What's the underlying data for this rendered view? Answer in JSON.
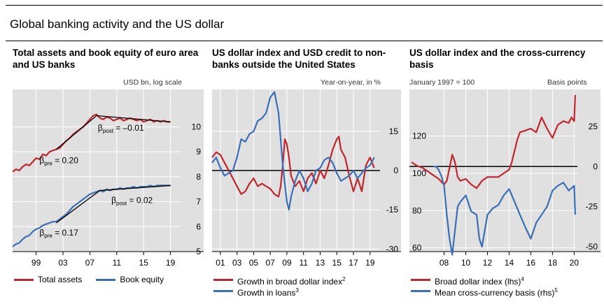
{
  "main_title": "Global banking activity and the US dollar",
  "colors": {
    "red": "#c0262d",
    "blue": "#3b6fb5",
    "grid": "#ffffff",
    "panel": "#e0e0e0"
  },
  "chart_data": [
    {
      "type": "line",
      "title": "Total assets and book equity of euro area and US banks",
      "unit_label": "USD bn, log scale",
      "y_axis_side": "right",
      "ylim": [
        5,
        11.5
      ],
      "yticks": [
        5,
        6,
        7,
        8,
        9,
        10
      ],
      "xlim": [
        1995.5,
        2020.5
      ],
      "xticks": [
        1999,
        2003,
        2007,
        2011,
        2015,
        2019
      ],
      "xtick_labels": [
        "99",
        "03",
        "07",
        "11",
        "15",
        "19"
      ],
      "annotations": [
        {
          "text": "= –0.01",
          "beta": "β",
          "sub": "post",
          "x": 2008.2,
          "y": 9.85
        },
        {
          "text": "= 0.20",
          "beta": "β",
          "sub": "pre",
          "x": 1999.5,
          "y": 8.55
        },
        {
          "text": "= 0.02",
          "beta": "β",
          "sub": "post",
          "x": 2010.2,
          "y": 6.95
        },
        {
          "text": "= 0.17",
          "beta": "β",
          "sub": "pre",
          "x": 1999.5,
          "y": 5.65
        }
      ],
      "fits": [
        {
          "x": [
            2002,
            2008
          ],
          "y": [
            9.1,
            10.45
          ]
        },
        {
          "x": [
            2008,
            2019
          ],
          "y": [
            10.45,
            10.2
          ]
        },
        {
          "x": [
            2002,
            2008.5
          ],
          "y": [
            6.15,
            7.45
          ]
        },
        {
          "x": [
            2008.5,
            2019
          ],
          "y": [
            7.45,
            7.65
          ]
        }
      ],
      "series": [
        {
          "name": "Total assets",
          "color": "red",
          "x": [
            1995.5,
            1996,
            1996.5,
            1997,
            1997.5,
            1998,
            1998.5,
            1999,
            1999.5,
            2000,
            2000.5,
            2001,
            2001.5,
            2002,
            2002.5,
            2003,
            2003.5,
            2004,
            2004.5,
            2005,
            2005.5,
            2006,
            2006.5,
            2007,
            2007.5,
            2008,
            2008.5,
            2009,
            2009.5,
            2010,
            2010.5,
            2011,
            2011.5,
            2012,
            2012.5,
            2013,
            2013.5,
            2014,
            2014.5,
            2015,
            2015.5,
            2016,
            2016.5,
            2017,
            2017.5,
            2018,
            2018.5,
            2019
          ],
          "y": [
            8.2,
            8.3,
            8.25,
            8.4,
            8.5,
            8.45,
            8.6,
            8.75,
            8.7,
            8.9,
            8.85,
            9.0,
            9.05,
            9.1,
            9.15,
            9.3,
            9.45,
            9.55,
            9.7,
            9.8,
            9.9,
            10.0,
            10.15,
            10.3,
            10.45,
            10.5,
            10.35,
            10.3,
            10.4,
            10.35,
            10.25,
            10.3,
            10.35,
            10.25,
            10.3,
            10.35,
            10.3,
            10.25,
            10.3,
            10.2,
            10.25,
            10.3,
            10.2,
            10.25,
            10.2,
            10.25,
            10.2,
            10.2
          ]
        },
        {
          "name": "Book equity",
          "color": "blue",
          "x": [
            1995.5,
            1996,
            1996.5,
            1997,
            1997.5,
            1998,
            1998.5,
            1999,
            1999.5,
            2000,
            2000.5,
            2001,
            2001.5,
            2002,
            2002.5,
            2003,
            2003.5,
            2004,
            2004.5,
            2005,
            2005.5,
            2006,
            2006.5,
            2007,
            2007.5,
            2008,
            2008.5,
            2009,
            2009.5,
            2010,
            2010.5,
            2011,
            2011.5,
            2012,
            2012.5,
            2013,
            2013.5,
            2014,
            2014.5,
            2015,
            2015.5,
            2016,
            2016.5,
            2017,
            2017.5,
            2018,
            2018.5,
            2019
          ],
          "y": [
            5.2,
            5.3,
            5.35,
            5.5,
            5.6,
            5.65,
            5.8,
            5.9,
            5.95,
            6.05,
            6.1,
            6.15,
            6.2,
            6.2,
            6.3,
            6.4,
            6.5,
            6.65,
            6.8,
            6.9,
            7.0,
            7.1,
            7.2,
            7.3,
            7.35,
            7.4,
            7.45,
            7.4,
            7.5,
            7.45,
            7.5,
            7.5,
            7.55,
            7.5,
            7.55,
            7.55,
            7.6,
            7.55,
            7.6,
            7.6,
            7.6,
            7.65,
            7.6,
            7.65,
            7.65,
            7.65,
            7.65,
            7.65
          ]
        }
      ],
      "legend": [
        {
          "label": "Total assets",
          "color": "red"
        },
        {
          "label": "Book equity",
          "color": "blue"
        }
      ]
    },
    {
      "type": "line",
      "title": "US dollar index and USD credit to non-banks outside the United States",
      "unit_label": "Year-on-year, in %",
      "y_axis_side": "right",
      "ylim": [
        -31,
        31
      ],
      "yticks": [
        -30,
        -15,
        0,
        15
      ],
      "xlim": [
        2000,
        2020.2
      ],
      "xticks": [
        2001,
        2003,
        2005,
        2007,
        2009,
        2011,
        2013,
        2015,
        2017,
        2019
      ],
      "xtick_labels": [
        "01",
        "03",
        "05",
        "07",
        "09",
        "11",
        "13",
        "15",
        "17",
        "19"
      ],
      "zero_line": 0,
      "series": [
        {
          "name": "Growth in broad dollar index",
          "sup": "2",
          "color": "red",
          "x": [
            2000,
            2000.5,
            2001,
            2001.5,
            2002,
            2002.5,
            2003,
            2003.5,
            2004,
            2004.5,
            2005,
            2005.5,
            2006,
            2006.5,
            2007,
            2007.5,
            2008,
            2008.25,
            2008.5,
            2008.75,
            2009,
            2009.25,
            2009.5,
            2010,
            2010.5,
            2011,
            2011.5,
            2012,
            2012.5,
            2013,
            2013.5,
            2014,
            2014.5,
            2015,
            2015.25,
            2015.5,
            2016,
            2016.5,
            2017,
            2017.5,
            2018,
            2018.5,
            2019,
            2019.5
          ],
          "y": [
            5,
            7,
            6,
            3,
            0,
            -3,
            -6,
            -9,
            -8,
            -5,
            -3,
            -6,
            -5,
            -6,
            -7,
            -9,
            -10,
            -6,
            2,
            12,
            10,
            5,
            -2,
            -6,
            -4,
            -8,
            -3,
            -1,
            -5,
            0,
            -3,
            2,
            8,
            12,
            13,
            8,
            5,
            -2,
            -8,
            -3,
            -8,
            2,
            5,
            1
          ]
        },
        {
          "name": "Growth in loans",
          "sup": "3",
          "color": "blue",
          "x": [
            2000,
            2000.5,
            2001,
            2001.5,
            2002,
            2002.5,
            2003,
            2003.5,
            2004,
            2004.5,
            2005,
            2005.5,
            2006,
            2006.5,
            2007,
            2007.5,
            2008,
            2008.5,
            2009,
            2009.25,
            2009.5,
            2010,
            2010.5,
            2011,
            2011.5,
            2012,
            2012.5,
            2013,
            2013.5,
            2014,
            2014.5,
            2015,
            2015.5,
            2016,
            2016.5,
            2017,
            2017.5,
            2018,
            2018.5,
            2019,
            2019.5
          ],
          "y": [
            3,
            5,
            1,
            -2,
            -1,
            0,
            5,
            12,
            11,
            14,
            15,
            19,
            20,
            22,
            28,
            30,
            22,
            2,
            -12,
            -15,
            -10,
            -4,
            0,
            -3,
            -8,
            -5,
            0,
            1,
            4,
            5,
            3,
            -1,
            -4,
            -3,
            -2,
            0,
            -3,
            -1,
            1,
            2,
            5
          ]
        }
      ],
      "legend": [
        {
          "label": "Growth in broad dollar index",
          "sup": "2",
          "color": "red"
        },
        {
          "label": "Growth in loans",
          "sup": "3",
          "color": "blue"
        }
      ]
    },
    {
      "type": "line",
      "title": "US dollar index and the cross-currency basis",
      "unit_label_left": "January 1997 = 100",
      "unit_label_right": "Basis points",
      "ylim_left": [
        58,
        145
      ],
      "yticks_left": [
        60,
        80,
        100,
        120
      ],
      "ylim_right": [
        -53,
        48
      ],
      "yticks_right": [
        -50,
        -25,
        0,
        25
      ],
      "xlim": [
        2004.8,
        2020.3
      ],
      "xticks": [
        2008,
        2010,
        2012,
        2014,
        2016,
        2018,
        2020
      ],
      "xtick_labels": [
        "08",
        "10",
        "12",
        "14",
        "16",
        "18",
        "20"
      ],
      "zero_line_right": 0,
      "series": [
        {
          "name": "Broad dollar index (lhs)",
          "sup": "4",
          "color": "red",
          "axis": "left",
          "x": [
            2005,
            2005.5,
            2006,
            2006.5,
            2007,
            2007.5,
            2008,
            2008.25,
            2008.5,
            2008.75,
            2009,
            2009.25,
            2009.5,
            2010,
            2010.5,
            2011,
            2011.5,
            2012,
            2012.5,
            2013,
            2013.5,
            2014,
            2014.25,
            2014.5,
            2014.75,
            2015,
            2015.5,
            2016,
            2016.5,
            2017,
            2017.5,
            2018,
            2018.5,
            2019,
            2019.5,
            2019.75,
            2020,
            2020.1
          ],
          "y": [
            106,
            104,
            103,
            101,
            99,
            97,
            94,
            96,
            103,
            110,
            106,
            98,
            96,
            97,
            94,
            92,
            96,
            98,
            98,
            98,
            100,
            102,
            106,
            112,
            118,
            122,
            123,
            124,
            122,
            130,
            124,
            119,
            126,
            128,
            127,
            130,
            128,
            142
          ]
        },
        {
          "name": "Mean cross-currency basis (rhs)",
          "sup": "5",
          "color": "blue",
          "axis": "right",
          "x": [
            2007,
            2007.25,
            2007.5,
            2007.75,
            2008,
            2008.25,
            2008.5,
            2008.75,
            2009,
            2009.25,
            2009.5,
            2010,
            2010.5,
            2011,
            2011.25,
            2011.5,
            2011.75,
            2012,
            2012.5,
            2013,
            2013.5,
            2014,
            2014.5,
            2015,
            2015.5,
            2016,
            2016.5,
            2017,
            2017.5,
            2018,
            2018.5,
            2019,
            2019.5,
            2020,
            2020.1
          ],
          "y": [
            0,
            0,
            -2,
            -6,
            -12,
            -30,
            -45,
            -55,
            -40,
            -25,
            -22,
            -18,
            -28,
            -30,
            -45,
            -50,
            -40,
            -30,
            -26,
            -24,
            -18,
            -14,
            -22,
            -30,
            -38,
            -45,
            -35,
            -30,
            -25,
            -15,
            -12,
            -10,
            -15,
            -12,
            -30
          ]
        }
      ],
      "legend": [
        {
          "label": "Broad dollar index (lhs)",
          "sup": "4",
          "color": "red"
        },
        {
          "label": "Mean cross-currency basis (rhs)",
          "sup": "5",
          "color": "blue"
        }
      ]
    }
  ]
}
